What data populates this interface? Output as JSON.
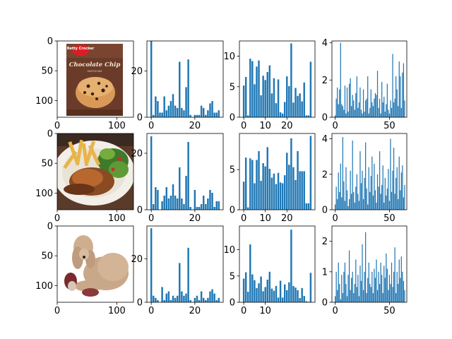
{
  "chart_data": {
    "type": "bar",
    "layout": "3x4 grid of subplots: column 1 images, columns 2-4 bar histograms",
    "colors": {
      "bar": "#1f77b4",
      "axis": "#000000",
      "background": "#ffffff"
    },
    "rows": [
      {
        "image": {
          "subject": "cake mix box",
          "packaging_text": [
            "Betty Crocker",
            "Chocolate Chip",
            "MUFFIN MIX"
          ],
          "xlim": [
            0,
            128
          ],
          "ylim": [
            128,
            0
          ],
          "xticks": [
            0,
            100
          ],
          "yticks": [
            0,
            50,
            100
          ]
        },
        "hist32": {
          "xlim": [
            -2,
            33
          ],
          "ylim": [
            0,
            33
          ],
          "xticks": [
            0,
            20
          ],
          "yticks": [
            0,
            20
          ],
          "values": [
            33,
            1,
            9,
            7,
            2,
            2,
            9,
            3,
            5,
            7,
            10,
            5,
            4,
            24,
            4,
            3,
            13,
            25,
            1,
            0,
            1,
            1,
            1,
            5,
            4,
            1,
            3,
            6,
            7,
            2,
            2,
            3
          ]
        },
        "hist32b": {
          "xlim": [
            -2,
            33
          ],
          "ylim": [
            0,
            12.5
          ],
          "xticks": [
            0,
            10,
            20
          ],
          "yticks": [
            0,
            5,
            10
          ],
          "values": [
            5.2,
            6.6,
            0.3,
            9.6,
            9.2,
            5.4,
            8.3,
            9.3,
            3.6,
            6.8,
            6.1,
            7.4,
            8.5,
            3.9,
            6.4,
            2.3,
            6.2,
            0.8,
            0.6,
            2.5,
            6.7,
            5.1,
            12.1,
            2.4,
            4.8,
            3.5,
            3.9,
            2.6,
            5.7,
            0.3,
            0.3,
            9.1
          ]
        },
        "hist64": {
          "xlim": [
            -3,
            66
          ],
          "ylim": [
            0,
            4.1
          ],
          "xticks": [
            0,
            50
          ],
          "yticks": [
            0,
            2,
            4
          ],
          "values": [
            0.1,
            1.0,
            1.6,
            0.7,
            1.5,
            4.0,
            0.7,
            0.6,
            0.4,
            1.7,
            0.2,
            1.6,
            0.3,
            1.8,
            2.1,
            0.6,
            1.2,
            0.9,
            0.4,
            1.3,
            2.2,
            0.5,
            0.8,
            1.6,
            0.4,
            0.2,
            1.5,
            0.3,
            0.9,
            1.0,
            2.2,
            0.2,
            0.5,
            1.5,
            0.8,
            0.6,
            1.0,
            1.3,
            1.2,
            2.5,
            0.5,
            1.0,
            0.2,
            1.9,
            0.8,
            1.1,
            0.3,
            0.7,
            1.8,
            0.4,
            0.2,
            0.9,
            0.5,
            3.4,
            0.8,
            1.0,
            2.2,
            1.5,
            0.6,
            3.0,
            2.2,
            0.5,
            2.4,
            2.9,
            0.9
          ]
        }
      },
      {
        "image": {
          "subject": "plate of chicken, fries and salad",
          "xlim": [
            0,
            128
          ],
          "ylim": [
            128,
            0
          ],
          "xticks": [
            0,
            100
          ],
          "yticks": [
            0,
            50,
            100
          ]
        },
        "hist32": {
          "xlim": [
            -2,
            33
          ],
          "ylim": [
            0,
            27
          ],
          "xticks": [
            0,
            20
          ],
          "yticks": [
            0,
            20
          ],
          "values": [
            26,
            2,
            8,
            7,
            0,
            3,
            5,
            8,
            4,
            5,
            9,
            5,
            4,
            15,
            4,
            2,
            12,
            24,
            1,
            0,
            7,
            1,
            1,
            2,
            5,
            2,
            4,
            7,
            6,
            1,
            3,
            3
          ]
        },
        "hist32b": {
          "xlim": [
            -2,
            33
          ],
          "ylim": [
            0,
            9.5
          ],
          "xticks": [
            0,
            10,
            20
          ],
          "yticks": [
            0,
            5
          ],
          "values": [
            3.5,
            6.5,
            0.3,
            6.4,
            6.2,
            3.3,
            6.2,
            7.3,
            3.6,
            5.8,
            5.4,
            7.8,
            5.1,
            4.0,
            4.5,
            3.2,
            4.6,
            3.4,
            3.3,
            4.3,
            7.1,
            5.6,
            8.9,
            5.3,
            3.7,
            7.3,
            4.8,
            4.8,
            4.8,
            0.8,
            0.8,
            9.2
          ]
        },
        "hist64": {
          "xlim": [
            -3,
            66
          ],
          "ylim": [
            0,
            4.3
          ],
          "xticks": [
            0,
            50
          ],
          "yticks": [
            0,
            2,
            4
          ],
          "values": [
            0.3,
            1.3,
            0.6,
            2.1,
            1.0,
            2.6,
            0.7,
            4.1,
            1.6,
            0.5,
            2.4,
            1.1,
            0.2,
            0.6,
            2.2,
            0.9,
            3.9,
            1.0,
            0.4,
            1.3,
            2.0,
            0.9,
            0.5,
            3.3,
            1.5,
            2.2,
            0.6,
            1.8,
            3.8,
            1.2,
            0.3,
            2.4,
            1.0,
            1.9,
            3.0,
            0.8,
            2.6,
            1.1,
            0.4,
            2.0,
            1.3,
            3.3,
            0.9,
            1.4,
            2.5,
            0.4,
            1.8,
            0.8,
            1.2,
            2.3,
            0.5,
            4.0,
            1.0,
            2.2,
            3.5,
            0.9,
            1.8,
            2.4,
            0.6,
            3.0,
            1.1,
            2.1,
            2.5,
            0.7,
            1.4
          ]
        }
      },
      {
        "image": {
          "subject": "poodle dog lying down",
          "xlim": [
            0,
            128
          ],
          "ylim": [
            128,
            0
          ],
          "xticks": [
            0,
            100
          ],
          "yticks": [
            0,
            50,
            100
          ]
        },
        "hist32": {
          "xlim": [
            -2,
            33
          ],
          "ylim": [
            0,
            35
          ],
          "xticks": [
            0,
            20
          ],
          "yticks": [
            0,
            20
          ],
          "values": [
            34,
            3,
            2,
            1,
            0,
            7,
            1,
            4,
            5,
            1,
            3,
            2,
            3,
            18,
            5,
            3,
            4,
            25,
            1,
            0,
            2,
            3,
            1,
            5,
            2,
            1,
            2,
            5,
            6,
            4,
            1,
            2
          ]
        },
        "hist32b": {
          "xlim": [
            -2,
            33
          ],
          "ylim": [
            0,
            14.5
          ],
          "xticks": [
            0,
            10
          ],
          "yticks": [
            0,
            5,
            10
          ],
          "values": [
            4.5,
            5.7,
            2.0,
            11.0,
            5.3,
            4.2,
            2.7,
            3.6,
            4.9,
            2.1,
            2.9,
            4.3,
            5.8,
            2.6,
            2.2,
            3.1,
            0.9,
            4.1,
            0.9,
            3.4,
            2.3,
            3.8,
            13.8,
            3.1,
            2.8,
            2.3,
            0.8,
            2.7,
            1.2,
            0.2,
            0.1,
            5.6
          ]
        },
        "hist64": {
          "xlim": [
            -3,
            66
          ],
          "ylim": [
            0,
            2.5
          ],
          "xticks": [
            0,
            50
          ],
          "yticks": [
            0,
            1,
            2
          ],
          "values": [
            0.2,
            1.0,
            0.4,
            1.3,
            0.6,
            0.1,
            0.9,
            0.3,
            1.0,
            1.3,
            0.6,
            0.2,
            0.9,
            1.7,
            0.4,
            0.8,
            1.0,
            0.3,
            0.6,
            1.4,
            0.5,
            0.9,
            0.2,
            1.2,
            0.7,
            1.9,
            0.4,
            1.0,
            2.3,
            0.3,
            0.8,
            1.3,
            0.6,
            0.5,
            1.0,
            0.3,
            1.1,
            0.8,
            1.4,
            0.4,
            1.0,
            0.6,
            1.3,
            0.9,
            0.3,
            1.2,
            0.8,
            1.6,
            1.1,
            0.4,
            0.9,
            0.6,
            1.3,
            0.5,
            1.0,
            1.8,
            0.3,
            1.0,
            0.6,
            1.4,
            0.8,
            1.5,
            1.0,
            0.7,
            0.4
          ]
        }
      }
    ]
  }
}
